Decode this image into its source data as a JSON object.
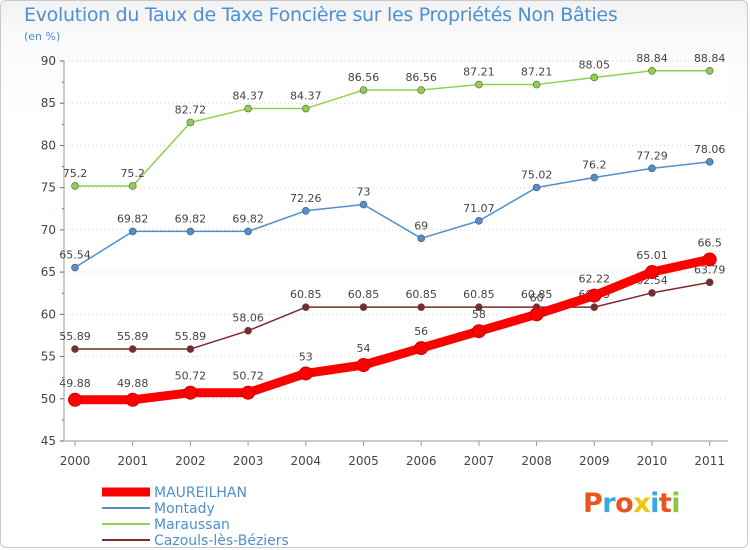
{
  "title": "Evolution du Taux de Taxe Foncière sur les Propriétés Non Bâties",
  "unit_label": "(en %)",
  "logo": {
    "letters": [
      "P",
      "r",
      "o",
      "x",
      "i",
      "t",
      "i"
    ],
    "colors": [
      "#e8551f",
      "#39a9e0",
      "#e8551f",
      "#f1c40f",
      "#39a9e0",
      "#e8551f",
      "#8cc63f"
    ]
  },
  "chart_data": {
    "type": "line",
    "x": [
      "2000",
      "2001",
      "2002",
      "2003",
      "2004",
      "2005",
      "2006",
      "2007",
      "2008",
      "2009",
      "2010",
      "2011"
    ],
    "ylim": [
      45,
      90
    ],
    "yticks": [
      "45",
      "50",
      "55",
      "60",
      "65",
      "70",
      "75",
      "80",
      "85",
      "90"
    ],
    "grid": "dotted-horizontal",
    "legend_position": "bottom-left",
    "series": [
      {
        "name": "MAUREILHAN",
        "color": "#ff0000",
        "emphasis": true,
        "values": [
          49.88,
          49.88,
          50.72,
          50.72,
          53,
          54,
          56,
          58,
          60,
          62.22,
          65.01,
          66.5
        ],
        "labels": [
          "49.88",
          "49.88",
          "50.72",
          "50.72",
          "53",
          "54",
          "56",
          "58",
          "60",
          "62.22",
          "65.01",
          "66.5"
        ]
      },
      {
        "name": "Montady",
        "color": "#4f8fcf",
        "values": [
          65.54,
          69.82,
          69.82,
          69.82,
          72.26,
          73,
          69,
          71.07,
          75.02,
          76.2,
          77.29,
          78.06
        ],
        "labels": [
          "65.54",
          "69.82",
          "69.82",
          "69.82",
          "72.26",
          "73",
          "69",
          "71.07",
          "75.02",
          "76.2",
          "77.29",
          "78.06"
        ]
      },
      {
        "name": "Maraussan",
        "color": "#8fd14f",
        "values": [
          75.2,
          75.2,
          82.72,
          84.37,
          84.37,
          86.56,
          86.56,
          87.21,
          87.21,
          88.05,
          88.84,
          88.84
        ],
        "labels": [
          "75.2",
          "75.2",
          "82.72",
          "84.37",
          "84.37",
          "86.56",
          "86.56",
          "87.21",
          "87.21",
          "88.05",
          "88.84",
          "88.84"
        ]
      },
      {
        "name": "Cazouls-lès-Béziers",
        "color": "#7a2a2a",
        "values": [
          55.89,
          55.89,
          55.89,
          58.06,
          60.85,
          60.85,
          60.85,
          60.85,
          60.85,
          60.85,
          62.54,
          63.79
        ],
        "labels": [
          "55.89",
          "55.89",
          "55.89",
          "58.06",
          "60.85",
          "60.85",
          "60.85",
          "60.85",
          "60.85",
          "60.85",
          "62.54",
          "63.79"
        ]
      }
    ]
  }
}
